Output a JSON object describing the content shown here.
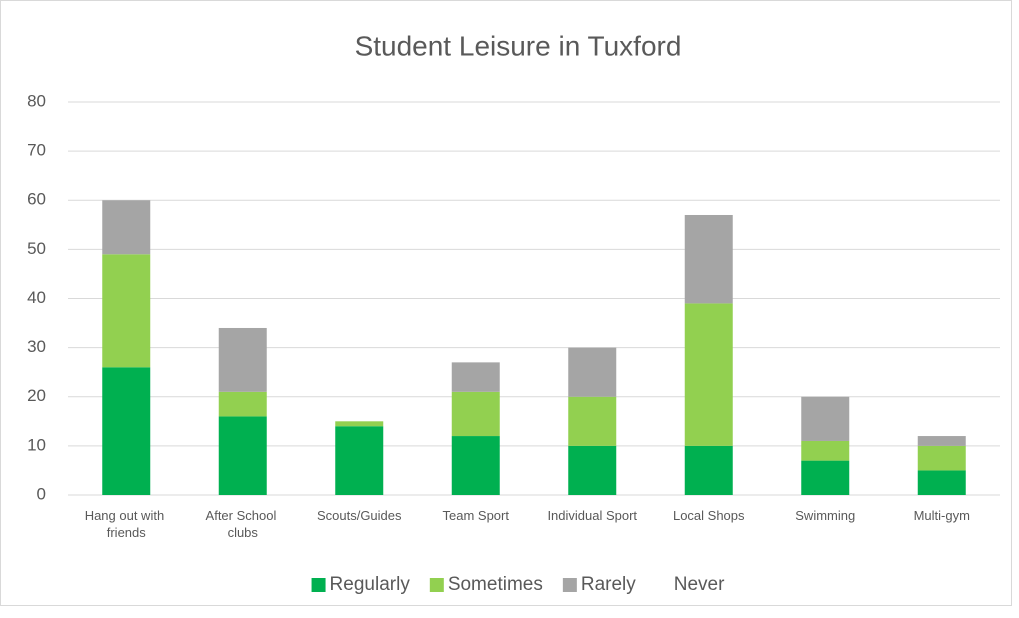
{
  "chart_data": {
    "type": "stacked_bar",
    "title": "Student Leisure in Tuxford",
    "categories": [
      "Hang out with friends",
      "After School clubs",
      "Scouts/Guides",
      "Team Sport",
      "Individual Sport",
      "Local Shops",
      "Swimming",
      "Multi-gym"
    ],
    "series": [
      {
        "name": "Regularly",
        "color": "#00b050",
        "values": [
          26,
          16,
          14,
          12,
          10,
          10,
          7,
          5
        ]
      },
      {
        "name": "Sometimes",
        "color": "#92d050",
        "values": [
          23,
          5,
          1,
          9,
          10,
          29,
          4,
          5
        ]
      },
      {
        "name": "Rarely",
        "color": "#a5a5a5",
        "values": [
          11,
          13,
          0,
          6,
          10,
          18,
          9,
          2
        ]
      },
      {
        "name": "Never",
        "color": "#ffffff",
        "values": [
          null,
          null,
          null,
          null,
          null,
          null,
          null,
          null
        ]
      }
    ],
    "ylim": [
      0,
      80
    ],
    "yticks": [
      0,
      10,
      20,
      30,
      40,
      50,
      60,
      70,
      80
    ],
    "grid": true,
    "legend": "bottom"
  }
}
